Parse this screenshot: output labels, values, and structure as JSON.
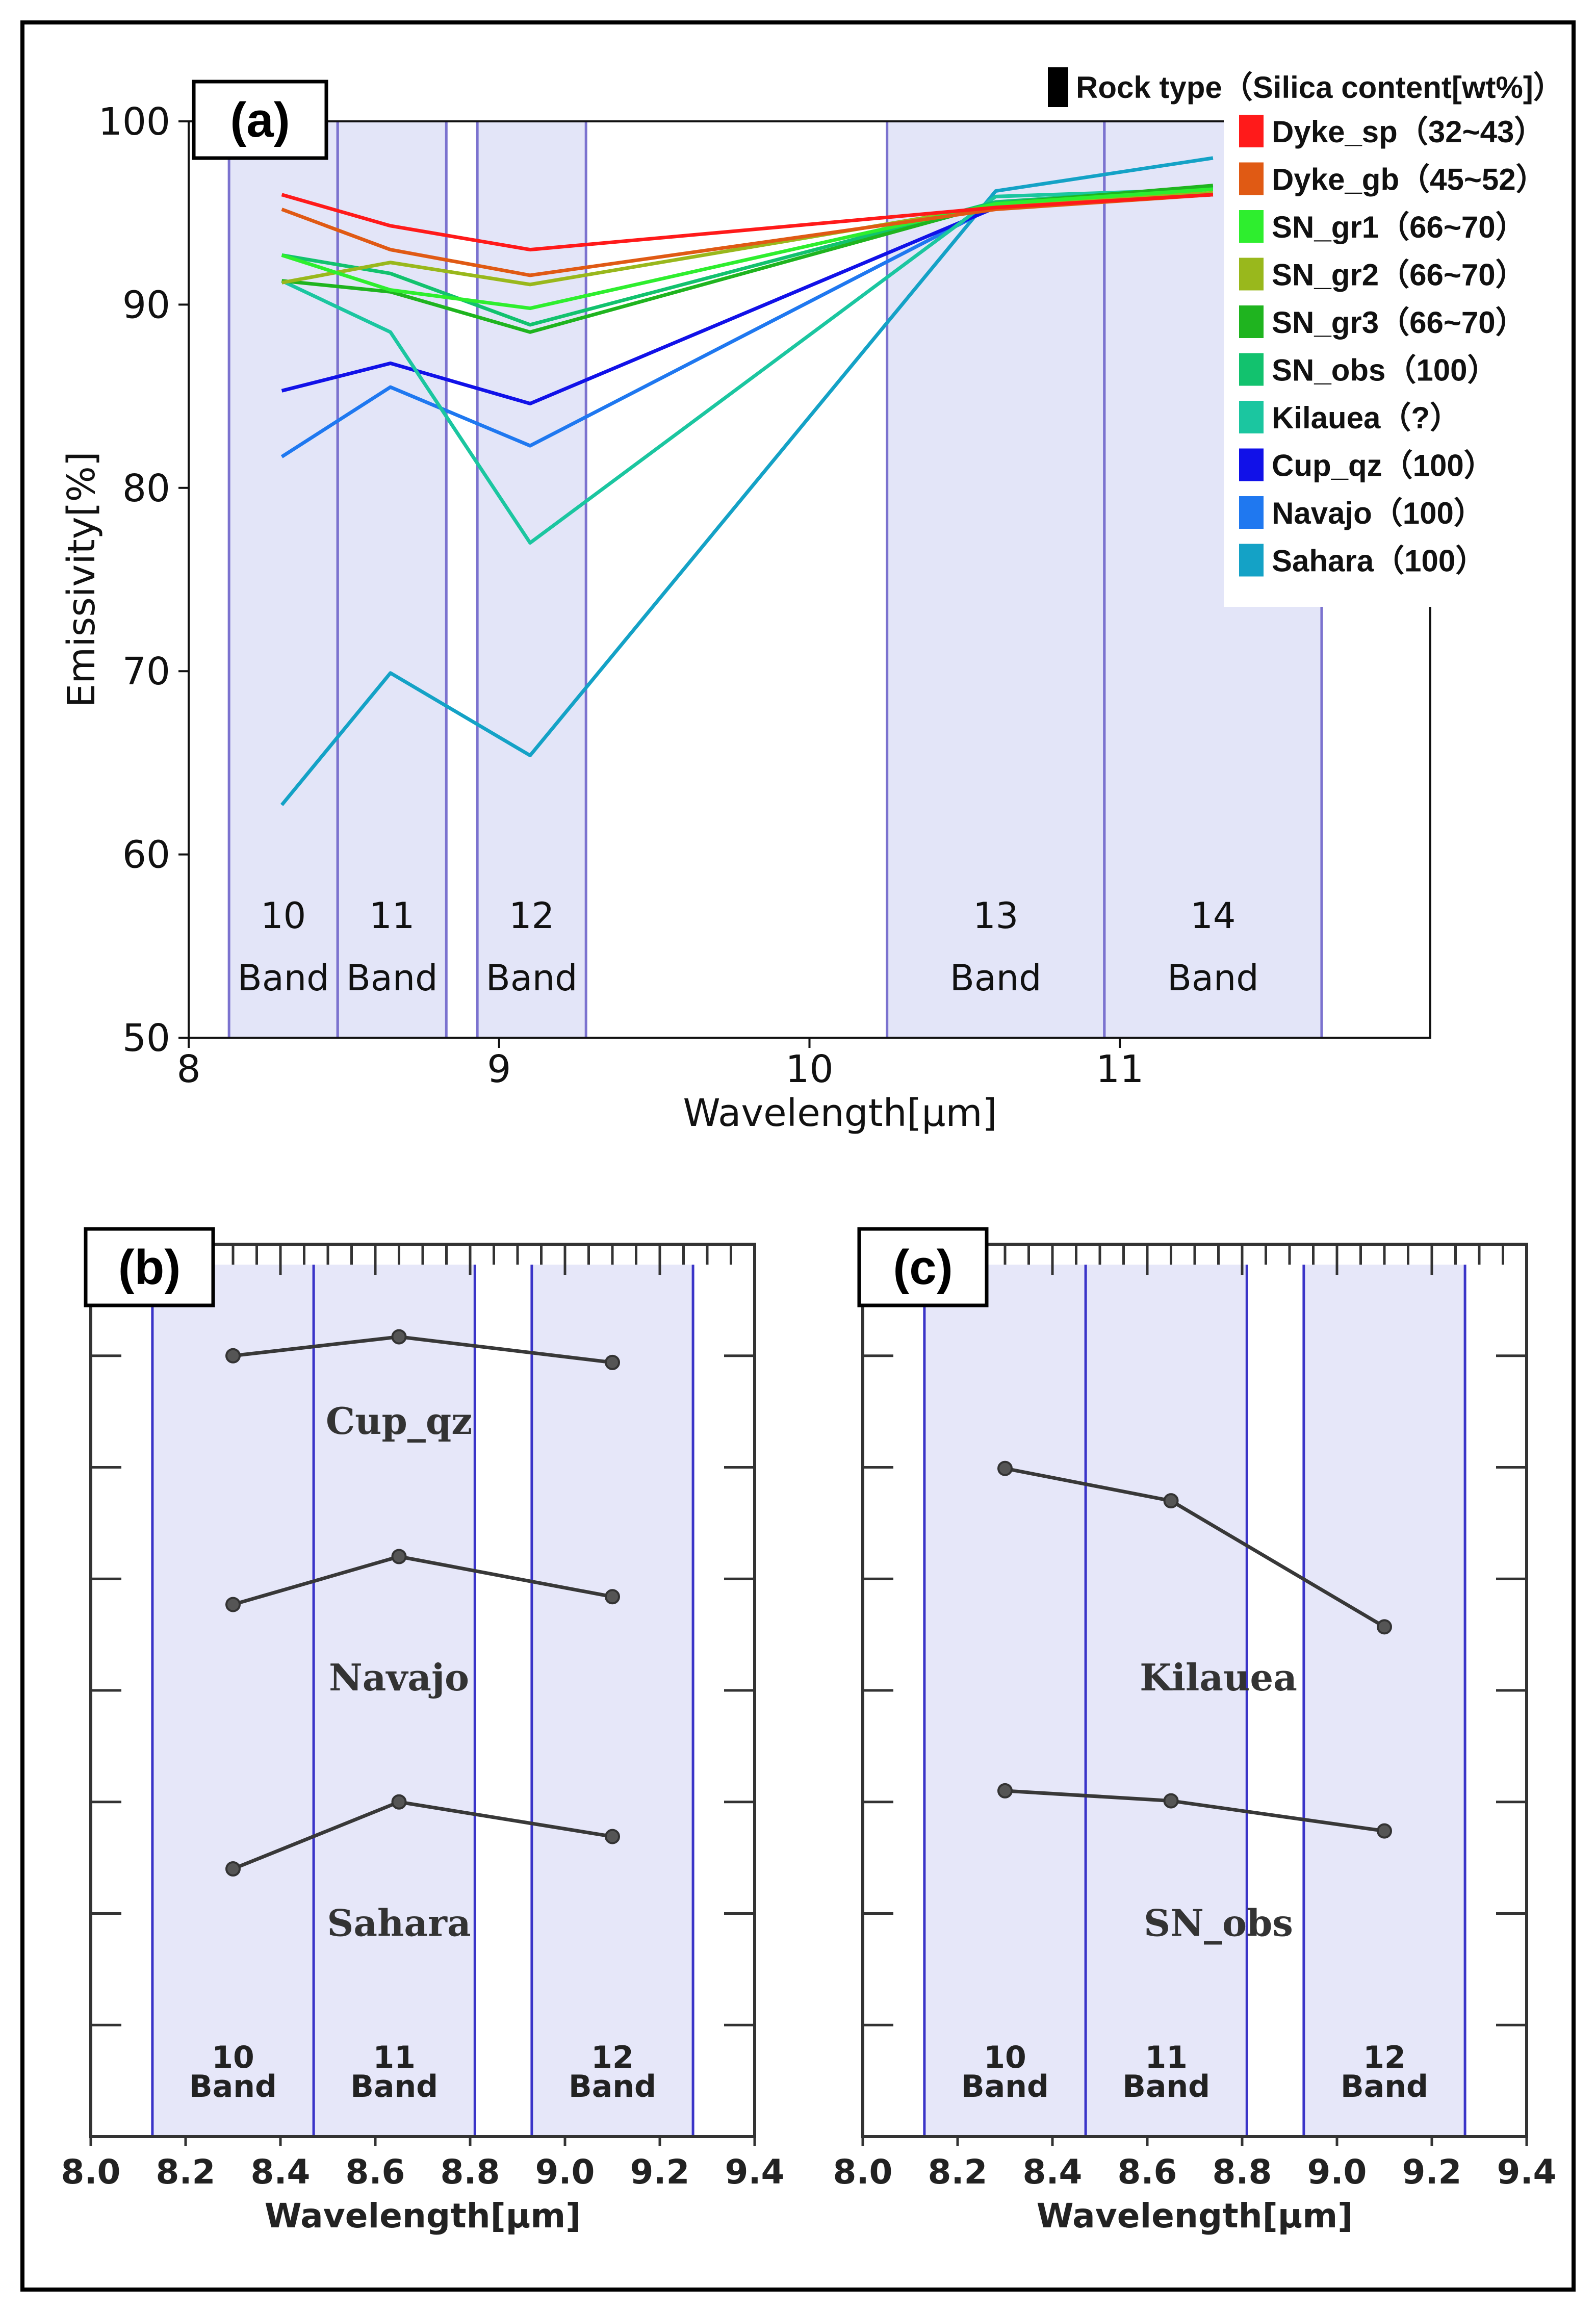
{
  "chart_data": [
    {
      "panel": "(a)",
      "type": "line",
      "xlabel": "Wavelength[µm]",
      "ylabel": "Emissivity[%]",
      "xlim": [
        8,
        12
      ],
      "ylim": [
        50,
        100
      ],
      "xticks": [
        8,
        9,
        10,
        11
      ],
      "yticks": [
        50,
        60,
        70,
        80,
        90,
        100
      ],
      "x": [
        8.3,
        8.65,
        9.1,
        10.6,
        11.3
      ],
      "bands": [
        {
          "number": "10",
          "label": "Band",
          "from": 8.13,
          "to": 8.48
        },
        {
          "number": "11",
          "label": "Band",
          "from": 8.48,
          "to": 8.83
        },
        {
          "number": "12",
          "label": "Band",
          "from": 8.93,
          "to": 9.28
        },
        {
          "number": "13",
          "label": "Band",
          "from": 10.25,
          "to": 10.95
        },
        {
          "number": "14",
          "label": "Band",
          "from": 10.95,
          "to": 11.65
        }
      ],
      "legend_title": "Rock type（Silica content[wt%]）",
      "legend_position": "top-right",
      "series": [
        {
          "name": "Dyke_sp（32~43）",
          "color": "#ff1a1a",
          "values": [
            96.0,
            94.3,
            93.0,
            95.3,
            96.0
          ]
        },
        {
          "name": "Dyke_gb（45~52）",
          "color": "#e05a14",
          "values": [
            95.2,
            93.0,
            91.6,
            95.2,
            96.0
          ]
        },
        {
          "name": "SN_gr1（66~70）",
          "color": "#2eee2e",
          "values": [
            92.7,
            90.8,
            89.8,
            95.5,
            96.3
          ]
        },
        {
          "name": "SN_gr2（66~70）",
          "color": "#99b81c",
          "values": [
            91.2,
            92.3,
            91.1,
            95.4,
            96.1
          ]
        },
        {
          "name": "SN_gr3（66~70）",
          "color": "#1fb41f",
          "values": [
            91.3,
            90.7,
            88.5,
            95.5,
            96.5
          ]
        },
        {
          "name": "SN_obs（100）",
          "color": "#12c26e",
          "values": [
            92.7,
            91.7,
            88.9,
            95.6,
            96.4
          ]
        },
        {
          "name": "Kilauea（?）",
          "color": "#1bc6a0",
          "values": [
            91.3,
            88.5,
            77.0,
            95.9,
            96.3
          ]
        },
        {
          "name": "Cup_qz（100）",
          "color": "#1111e8",
          "values": [
            85.3,
            86.8,
            84.6,
            95.3,
            96.0
          ]
        },
        {
          "name": "Navajo（100）",
          "color": "#1f78f0",
          "values": [
            81.7,
            85.5,
            82.3,
            95.4,
            96.0
          ]
        },
        {
          "name": "Sahara（100）",
          "color": "#14a2c6",
          "values": [
            62.7,
            69.9,
            65.4,
            96.2,
            98.0
          ]
        }
      ]
    },
    {
      "panel": "(b)",
      "type": "line",
      "xlabel": "Wavelength[µm]",
      "xlim": [
        8.0,
        9.4
      ],
      "xtick_labels": [
        "8.0",
        "8.2",
        "8.4",
        "8.6",
        "8.8",
        "9.0",
        "9.2",
        "9.4"
      ],
      "x": [
        8.3,
        8.65,
        9.1
      ],
      "bands": [
        {
          "number": "10",
          "label": "Band"
        },
        {
          "number": "11",
          "label": "Band"
        },
        {
          "number": "12",
          "label": "Band"
        }
      ],
      "series": [
        {
          "name": "Cup_qz",
          "values": [
            7.0,
            7.17,
            6.94
          ]
        },
        {
          "name": "Navajo",
          "values": [
            4.77,
            5.2,
            4.84
          ]
        },
        {
          "name": "Sahara",
          "values": [
            2.4,
            3.0,
            2.69
          ]
        }
      ]
    },
    {
      "panel": "(c)",
      "type": "line",
      "xlabel": "Wavelength[µm]",
      "xlim": [
        8.0,
        9.4
      ],
      "xtick_labels": [
        "8.0",
        "8.2",
        "8.4",
        "8.6",
        "8.8",
        "9.0",
        "9.2",
        "9.4"
      ],
      "x": [
        8.3,
        8.65,
        9.1
      ],
      "bands": [
        {
          "number": "10",
          "label": "Band"
        },
        {
          "number": "11",
          "label": "Band"
        },
        {
          "number": "12",
          "label": "Band"
        }
      ],
      "series": [
        {
          "name": "Kilauea",
          "values": [
            5.99,
            5.7,
            4.57
          ]
        },
        {
          "name": "SN_obs",
          "values": [
            3.1,
            3.01,
            2.74
          ]
        }
      ]
    }
  ]
}
